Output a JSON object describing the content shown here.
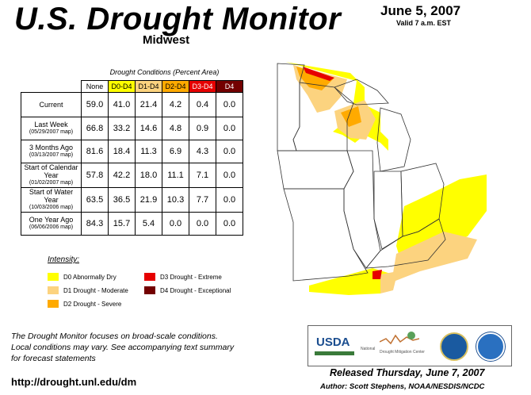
{
  "header": {
    "title": "U.S. Drought Monitor",
    "region": "Midwest",
    "date": "June 5, 2007",
    "valid": "Valid 7 a.m. EST"
  },
  "table": {
    "caption": "Drought Conditions (Percent Area)",
    "columns": [
      "None",
      "D0-D4",
      "D1-D4",
      "D2-D4",
      "D3-D4",
      "D4"
    ],
    "column_colors": [
      "#ffffff",
      "#ffff00",
      "#fcd37f",
      "#ffaa00",
      "#e60000",
      "#730000"
    ],
    "rows": [
      {
        "label": "Current",
        "sub": "",
        "values": [
          "59.0",
          "41.0",
          "21.4",
          "4.2",
          "0.4",
          "0.0"
        ]
      },
      {
        "label": "Last Week",
        "sub": "(05/29/2007 map)",
        "values": [
          "66.8",
          "33.2",
          "14.6",
          "4.8",
          "0.9",
          "0.0"
        ]
      },
      {
        "label": "3 Months Ago",
        "sub": "(03/13/2007 map)",
        "values": [
          "81.6",
          "18.4",
          "11.3",
          "6.9",
          "4.3",
          "0.0"
        ]
      },
      {
        "label": "Start of Calendar Year",
        "sub": "(01/02/2007 map)",
        "values": [
          "57.8",
          "42.2",
          "18.0",
          "11.1",
          "7.1",
          "0.0"
        ]
      },
      {
        "label": "Start of Water Year",
        "sub": "(10/03/2006 map)",
        "values": [
          "63.5",
          "36.5",
          "21.9",
          "10.3",
          "7.7",
          "0.0"
        ]
      },
      {
        "label": "One Year Ago",
        "sub": "(06/06/2006 map)",
        "values": [
          "84.3",
          "15.7",
          "5.4",
          "0.0",
          "0.0",
          "0.0"
        ]
      }
    ]
  },
  "legend": {
    "title": "Intensity:",
    "items": [
      {
        "label": "D0 Abnormally Dry",
        "color": "#ffff00"
      },
      {
        "label": "D1 Drought - Moderate",
        "color": "#fcd37f"
      },
      {
        "label": "D2 Drought - Severe",
        "color": "#ffaa00"
      },
      {
        "label": "D3 Drought - Extreme",
        "color": "#e60000"
      },
      {
        "label": "D4 Drought - Exceptional",
        "color": "#730000"
      }
    ]
  },
  "footnote": {
    "line1": "The Drought Monitor focuses on broad-scale conditions.",
    "line2": "Local conditions may vary. See accompanying text summary",
    "line3": "for forecast statements"
  },
  "url": "http://drought.unl.edu/dm",
  "logos": {
    "usda": "USDA",
    "ndmc_line1": "National",
    "ndmc_line2": "Drought Mitigation Center"
  },
  "released": "Released Thursday, June 7, 2007",
  "author": "Author: Scott Stephens, NOAA/NESDIS/NCDC"
}
